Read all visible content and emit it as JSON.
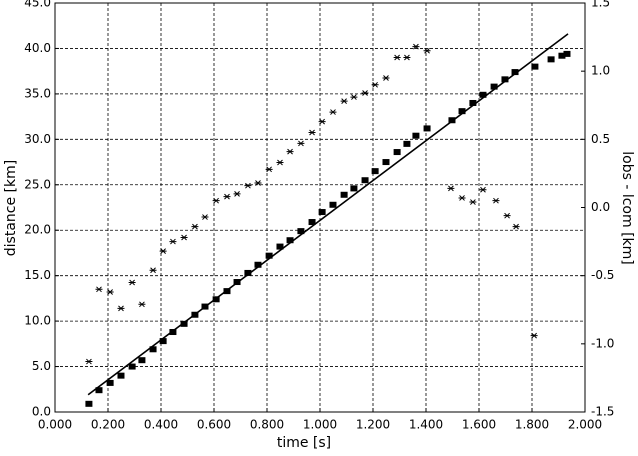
{
  "chart_data": {
    "type": "scatter",
    "xlabel": "time [s]",
    "ylabel": "distance [km]",
    "y2label": "lobs - lcom [km]",
    "xlim": [
      0,
      2
    ],
    "ylim": [
      0,
      45
    ],
    "y2lim": [
      -1.5,
      1.5
    ],
    "grid": true,
    "xticks": [
      {
        "value": 0,
        "label": "0.000"
      },
      {
        "value": 0.2,
        "label": "0.200"
      },
      {
        "value": 0.4,
        "label": "0.400"
      },
      {
        "value": 0.6,
        "label": "0.600"
      },
      {
        "value": 0.8,
        "label": "0.800"
      },
      {
        "value": 1,
        "label": "1.000"
      },
      {
        "value": 1.2,
        "label": "1.200"
      },
      {
        "value": 1.4,
        "label": "1.400"
      },
      {
        "value": 1.6,
        "label": "1.600"
      },
      {
        "value": 1.8,
        "label": "1.800"
      },
      {
        "value": 2,
        "label": "2.000"
      }
    ],
    "yticks": [
      {
        "value": 0,
        "label": "0.0"
      },
      {
        "value": 5,
        "label": "5.0"
      },
      {
        "value": 10,
        "label": "10.0"
      },
      {
        "value": 15,
        "label": "15.0"
      },
      {
        "value": 20,
        "label": "20.0"
      },
      {
        "value": 25,
        "label": "25.0"
      },
      {
        "value": 30,
        "label": "30.0"
      },
      {
        "value": 35,
        "label": "35.0"
      },
      {
        "value": 40,
        "label": "40.0"
      },
      {
        "value": 45,
        "label": "45.0"
      }
    ],
    "y2ticks": [
      1.5,
      {
        "value": 1,
        "label": "1.0"
      },
      0.5,
      {
        "value": 0,
        "label": "0.0"
      },
      -0.5,
      {
        "value": -1,
        "label": "-1.0"
      },
      -1.5
    ],
    "series": [
      {
        "marker": "square",
        "color": "#000000",
        "x": [
          0.128,
          0.166,
          0.208,
          0.249,
          0.291,
          0.328,
          0.37,
          0.408,
          0.445,
          0.487,
          0.528,
          0.566,
          0.608,
          0.649,
          0.687,
          0.728,
          0.766,
          0.808,
          0.849,
          0.887,
          0.928,
          0.97,
          1.008,
          1.049,
          1.091,
          1.128,
          1.17,
          1.208,
          1.249,
          1.291,
          1.328,
          1.362,
          1.404,
          1.498,
          1.536,
          1.577,
          1.615,
          1.657,
          1.698,
          1.736,
          1.811,
          1.872,
          1.913,
          1.932
        ],
        "values": [
          0.9,
          2.4,
          3.2,
          4.0,
          5.0,
          5.7,
          6.9,
          7.8,
          8.8,
          9.7,
          10.7,
          11.6,
          12.4,
          13.3,
          14.3,
          15.3,
          16.2,
          17.2,
          18.2,
          18.9,
          19.9,
          20.9,
          22.0,
          22.8,
          23.9,
          24.6,
          25.5,
          26.5,
          27.5,
          28.6,
          29.5,
          30.4,
          31.2,
          32.1,
          33.1,
          34.0,
          34.9,
          35.8,
          36.6,
          37.4,
          38.0,
          38.8,
          39.2,
          39.4
        ]
      },
      {
        "marker": "none",
        "color": "#000000",
        "x": [
          0.125,
          1.936
        ],
        "values": [
          1.9,
          41.6
        ]
      },
      {
        "marker": "star",
        "color": "#000000",
        "axis": "y2",
        "x": [
          0.128,
          0.166,
          0.208,
          0.249,
          0.291,
          0.328,
          0.37,
          0.408,
          0.445,
          0.487,
          0.528,
          0.566,
          0.608,
          0.649,
          0.687,
          0.728,
          0.766,
          0.808,
          0.849,
          0.887,
          0.928,
          0.97,
          1.008,
          1.049,
          1.091,
          1.128,
          1.17,
          1.208,
          1.249,
          1.291,
          1.328,
          1.362,
          1.404,
          1.494,
          1.536,
          1.577,
          1.615,
          1.664,
          1.706,
          1.74,
          1.808
        ],
        "values": [
          -1.13,
          -0.6,
          -0.62,
          -0.74,
          -0.55,
          -0.71,
          -0.46,
          -0.32,
          -0.25,
          -0.22,
          -0.14,
          -0.07,
          0.05,
          0.08,
          0.1,
          0.16,
          0.18,
          0.28,
          0.33,
          0.41,
          0.47,
          0.55,
          0.63,
          0.7,
          0.78,
          0.81,
          0.84,
          0.9,
          0.95,
          1.1,
          1.1,
          1.18,
          1.15,
          0.14,
          0.07,
          0.04,
          0.13,
          0.05,
          -0.06,
          -0.14,
          -0.94
        ]
      }
    ]
  }
}
